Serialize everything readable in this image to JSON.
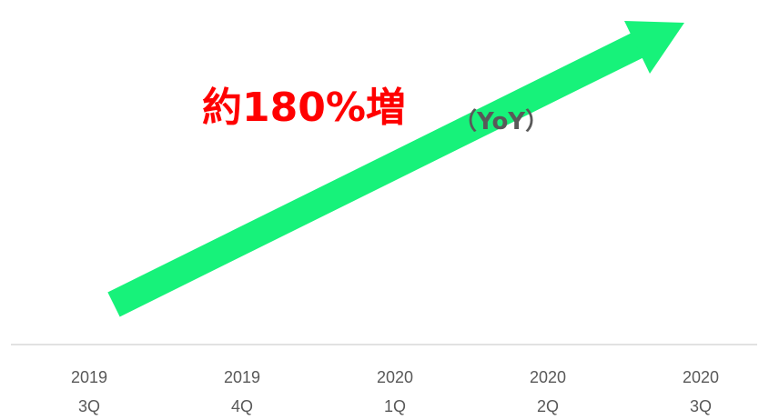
{
  "chart_data": {
    "type": "bar",
    "categories": [
      [
        "2019",
        "3Q"
      ],
      [
        "2019",
        "4Q"
      ],
      [
        "2020",
        "1Q"
      ],
      [
        "2020",
        "2Q"
      ],
      [
        "2020",
        "3Q"
      ]
    ],
    "annotations": [
      "約180%増",
      "（YoY）"
    ]
  }
}
